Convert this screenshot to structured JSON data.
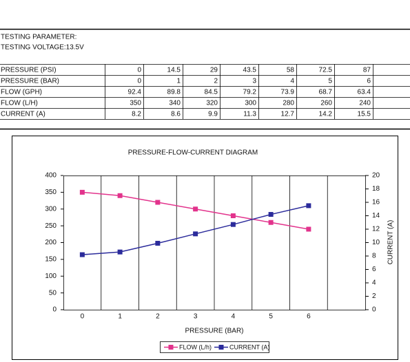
{
  "header": {
    "lines": [
      "TESTING PARAMETER:",
      "TESTING VOLTAGE:13.5V"
    ]
  },
  "table": {
    "rows": [
      [
        "PRESSURE (PSI)",
        0,
        14.5,
        29,
        43.5,
        58,
        72.5,
        87
      ],
      [
        "PRESSURE (BAR)",
        0,
        1,
        2,
        3,
        4,
        5,
        6
      ],
      [
        "FLOW (GPH)",
        92.4,
        89.8,
        84.5,
        79.2,
        73.9,
        68.7,
        63.4
      ],
      [
        "FLOW (L/H)",
        350,
        340,
        320,
        300,
        280,
        260,
        240
      ],
      [
        "CURRENT (A)",
        8.2,
        8.6,
        9.9,
        11.3,
        12.7,
        14.2,
        15.5
      ]
    ]
  },
  "chart_data": {
    "type": "line",
    "title": "PRESSURE-FLOW-CURRENT DIAGRAM",
    "x_label": "PRESSURE (BAR)",
    "y2_label": "CURRENT (A)",
    "x": [
      0,
      1,
      2,
      3,
      4,
      5,
      6
    ],
    "xlim": [
      -0.5,
      7.5
    ],
    "xticks": [
      0,
      1,
      2,
      3,
      4,
      5,
      6
    ],
    "ylim": [
      0,
      400
    ],
    "yticks": [
      0,
      50,
      100,
      150,
      200,
      250,
      300,
      350,
      400
    ],
    "y2lim": [
      0,
      20
    ],
    "y2ticks": [
      0,
      2,
      4,
      6,
      8,
      10,
      12,
      14,
      16,
      18,
      20
    ],
    "legend": "bottom",
    "series": [
      {
        "name": "FLOW (L/h)",
        "color": "#e2338c",
        "values": [
          350,
          340,
          320,
          300,
          280,
          260,
          240
        ]
      },
      {
        "name": "CURRENT (A)",
        "color": "#2b2b9b",
        "axis": "y2",
        "values": [
          8.2,
          8.6,
          9.9,
          11.3,
          12.7,
          14.2,
          15.5
        ]
      }
    ]
  }
}
